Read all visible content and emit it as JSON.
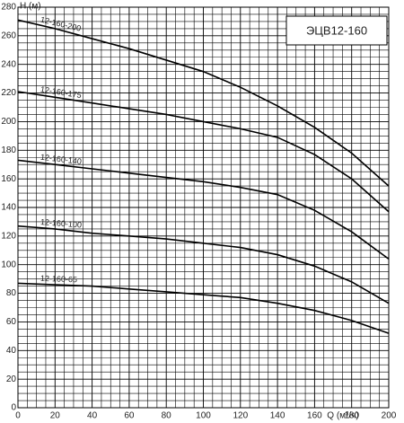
{
  "chart_data": {
    "type": "line",
    "title": "ЭЦВ12-160",
    "y_label": "H (м)",
    "x_label": "Q (м³/ч)",
    "x": [
      0,
      20,
      40,
      60,
      80,
      100,
      120,
      140,
      160,
      180,
      200
    ],
    "series": [
      {
        "name": "12-160-200",
        "color": "#000000",
        "values": [
          271,
          265,
          258,
          251,
          243,
          235,
          224,
          211,
          196,
          178,
          155
        ]
      },
      {
        "name": "12-160-175",
        "color": "#000000",
        "values": [
          221,
          217,
          213,
          209,
          205,
          200,
          195,
          189,
          177,
          160,
          137
        ]
      },
      {
        "name": "12-160-140",
        "color": "#000000",
        "values": [
          173,
          170,
          167,
          164,
          161,
          158,
          154,
          149,
          138,
          123,
          104
        ]
      },
      {
        "name": "12-160-100",
        "color": "#000000",
        "values": [
          127,
          125,
          122,
          120,
          118,
          115,
          112,
          107,
          99,
          88,
          73
        ]
      },
      {
        "name": "12-160-65",
        "color": "#000000",
        "values": [
          87,
          86,
          85,
          83,
          81,
          79,
          77,
          73,
          68,
          61,
          52
        ]
      }
    ],
    "xlim": [
      0,
      200
    ],
    "ylim": [
      0,
      280
    ],
    "xticks": [
      0,
      20,
      40,
      60,
      80,
      100,
      120,
      140,
      160,
      180,
      200
    ],
    "yticks": [
      0,
      20,
      40,
      60,
      80,
      100,
      120,
      140,
      160,
      180,
      200,
      220,
      240,
      260,
      280
    ],
    "grid": true
  }
}
